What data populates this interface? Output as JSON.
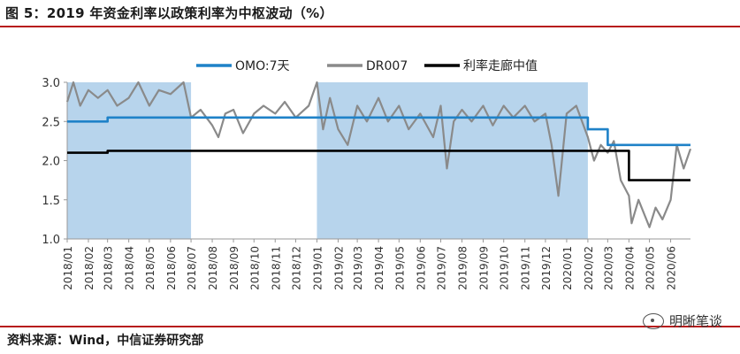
{
  "figure_title": "图 5：2019 年资金利率以政策利率为中枢波动（%）",
  "source": "资料来源：Wind，中信证券研究部",
  "watermark": "明晰笔谈",
  "colors": {
    "omo": "#1f82c8",
    "dr007": "#8a8a8a",
    "mid": "#000000",
    "shade": "#b7d4ec",
    "rule": "#b71c1c"
  },
  "chart_data": {
    "type": "line",
    "y_ticks": [
      "3.0",
      "2.5",
      "2.0",
      "1.5",
      "1.0"
    ],
    "ylim": [
      1.0,
      3.0
    ],
    "x_ticks": [
      "2018/01",
      "2018/02",
      "2018/03",
      "2018/04",
      "2018/05",
      "2018/06",
      "2018/07",
      "2018/08",
      "2018/09",
      "2018/10",
      "2018/11",
      "2018/12",
      "2019/01",
      "2019/02",
      "2019/03",
      "2019/04",
      "2019/05",
      "2019/06",
      "2019/07",
      "2019/08",
      "2019/09",
      "2019/10",
      "2019/11",
      "2019/12",
      "2020/01",
      "2020/02",
      "2020/03",
      "2020/04",
      "2020/05",
      "2020/06"
    ],
    "xlim": [
      "2018/01",
      "2020/06/30"
    ],
    "legend": [
      "OMO:7天",
      "DR007",
      "利率走廊中值"
    ],
    "legend_position": "top",
    "shaded_ranges": [
      [
        "2018/01",
        "2018/07"
      ],
      [
        "2019/01",
        "2020/02"
      ]
    ],
    "series": [
      {
        "name": "OMO:7天",
        "color": "#1f82c8",
        "step": true,
        "points": [
          [
            "2018/01",
            2.5
          ],
          [
            "2018/03",
            2.55
          ],
          [
            "2020/02",
            2.4
          ],
          [
            "2020/03",
            2.2
          ],
          [
            "2020/06/30",
            2.2
          ]
        ]
      },
      {
        "name": "利率走廊中值",
        "color": "#000000",
        "step": true,
        "points": [
          [
            "2018/01",
            2.1
          ],
          [
            "2018/03",
            2.125
          ],
          [
            "2020/04",
            1.75
          ],
          [
            "2020/06/30",
            1.75
          ]
        ]
      },
      {
        "name": "DR007",
        "color": "#8a8a8a",
        "step": false,
        "points": [
          [
            "2018/01",
            2.75
          ],
          [
            "2018/01/10",
            3.0
          ],
          [
            "2018/01/20",
            2.7
          ],
          [
            "2018/02",
            2.9
          ],
          [
            "2018/02/15",
            2.8
          ],
          [
            "2018/03",
            2.9
          ],
          [
            "2018/03/15",
            2.7
          ],
          [
            "2018/04",
            2.8
          ],
          [
            "2018/04/15",
            3.0
          ],
          [
            "2018/05",
            2.7
          ],
          [
            "2018/05/15",
            2.9
          ],
          [
            "2018/06",
            2.85
          ],
          [
            "2018/06/20",
            3.0
          ],
          [
            "2018/07",
            2.55
          ],
          [
            "2018/07/15",
            2.65
          ],
          [
            "2018/08",
            2.45
          ],
          [
            "2018/08/10",
            2.3
          ],
          [
            "2018/08/20",
            2.6
          ],
          [
            "2018/09",
            2.65
          ],
          [
            "2018/09/15",
            2.35
          ],
          [
            "2018/10",
            2.6
          ],
          [
            "2018/10/15",
            2.7
          ],
          [
            "2018/11",
            2.6
          ],
          [
            "2018/11/15",
            2.75
          ],
          [
            "2018/12",
            2.55
          ],
          [
            "2018/12/20",
            2.7
          ],
          [
            "2019/01",
            3.0
          ],
          [
            "2019/01/10",
            2.4
          ],
          [
            "2019/01/20",
            2.8
          ],
          [
            "2019/02",
            2.4
          ],
          [
            "2019/02/15",
            2.2
          ],
          [
            "2019/03",
            2.7
          ],
          [
            "2019/03/15",
            2.5
          ],
          [
            "2019/04",
            2.8
          ],
          [
            "2019/04/15",
            2.5
          ],
          [
            "2019/05",
            2.7
          ],
          [
            "2019/05/15",
            2.4
          ],
          [
            "2019/06",
            2.6
          ],
          [
            "2019/06/20",
            2.3
          ],
          [
            "2019/07",
            2.7
          ],
          [
            "2019/07/10",
            1.9
          ],
          [
            "2019/07/20",
            2.5
          ],
          [
            "2019/08",
            2.65
          ],
          [
            "2019/08/15",
            2.5
          ],
          [
            "2019/09",
            2.7
          ],
          [
            "2019/09/15",
            2.45
          ],
          [
            "2019/10",
            2.7
          ],
          [
            "2019/10/15",
            2.55
          ],
          [
            "2019/11",
            2.7
          ],
          [
            "2019/11/15",
            2.5
          ],
          [
            "2019/12",
            2.6
          ],
          [
            "2019/12/10",
            2.2
          ],
          [
            "2019/12/20",
            1.55
          ],
          [
            "2020/01",
            2.6
          ],
          [
            "2020/01/15",
            2.7
          ],
          [
            "2020/02",
            2.3
          ],
          [
            "2020/02/10",
            2.0
          ],
          [
            "2020/02/20",
            2.2
          ],
          [
            "2020/03",
            2.1
          ],
          [
            "2020/03/10",
            2.25
          ],
          [
            "2020/03/20",
            1.75
          ],
          [
            "2020/04",
            1.55
          ],
          [
            "2020/04/05",
            1.2
          ],
          [
            "2020/04/15",
            1.5
          ],
          [
            "2020/05",
            1.15
          ],
          [
            "2020/05/10",
            1.4
          ],
          [
            "2020/05/20",
            1.25
          ],
          [
            "2020/06",
            1.5
          ],
          [
            "2020/06/10",
            2.2
          ],
          [
            "2020/06/20",
            1.9
          ],
          [
            "2020/06/30",
            2.15
          ]
        ]
      }
    ]
  }
}
